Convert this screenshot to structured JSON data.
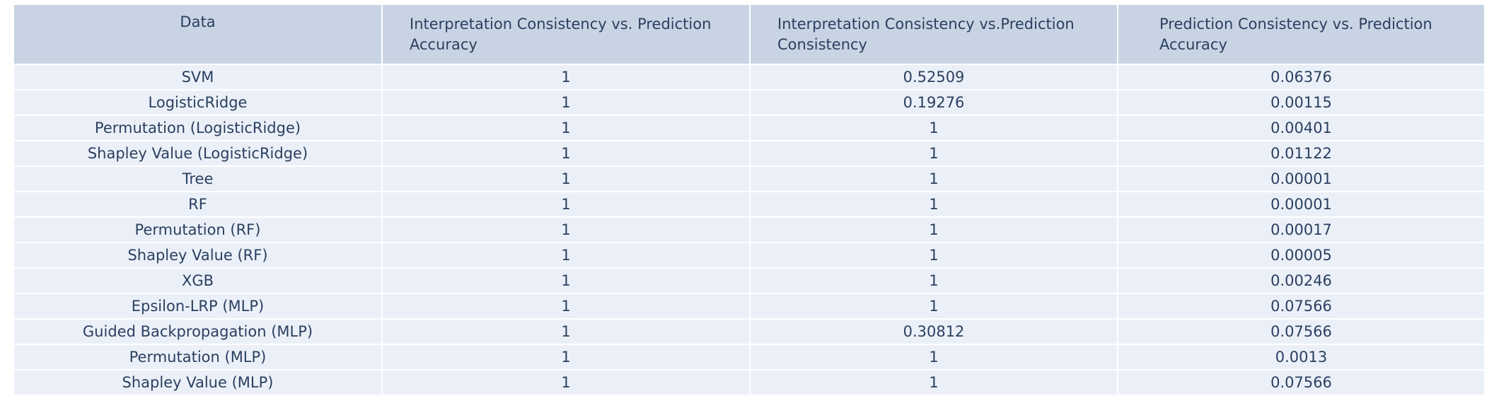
{
  "chart_data": {
    "type": "table",
    "columns": [
      "Data",
      "Interpretation Consistency vs. Prediction Accuracy",
      "Interpretation Consistency vs.Prediction Consistency",
      "Prediction Consistency vs.  Prediction Accuracy"
    ],
    "rows": [
      [
        "SVM",
        "1",
        "0.52509",
        "0.06376"
      ],
      [
        "LogisticRidge",
        "1",
        "0.19276",
        "0.00115"
      ],
      [
        "Permutation (LogisticRidge)",
        "1",
        "1",
        "0.00401"
      ],
      [
        "Shapley Value (LogisticRidge)",
        "1",
        "1",
        "0.01122"
      ],
      [
        "Tree",
        "1",
        "1",
        "0.00001"
      ],
      [
        "RF",
        "1",
        "1",
        "0.00001"
      ],
      [
        "Permutation (RF)",
        "1",
        "1",
        "0.00017"
      ],
      [
        "Shapley Value (RF)",
        "1",
        "1",
        "0.00005"
      ],
      [
        "XGB",
        "1",
        "1",
        "0.00246"
      ],
      [
        "Epsilon-LRP (MLP)",
        "1",
        "1",
        "0.07566"
      ],
      [
        "Guided Backpropagation (MLP)",
        "1",
        "0.30812",
        "0.07566"
      ],
      [
        "Permutation (MLP)",
        "1",
        "1",
        "0.0013"
      ],
      [
        "Shapley Value (MLP)",
        "1",
        "1",
        "0.07566"
      ]
    ],
    "colors": {
      "header_fill": "#c8d4e3",
      "cell_fill": "#ebf0f8",
      "text": "#2a3f5f"
    }
  }
}
